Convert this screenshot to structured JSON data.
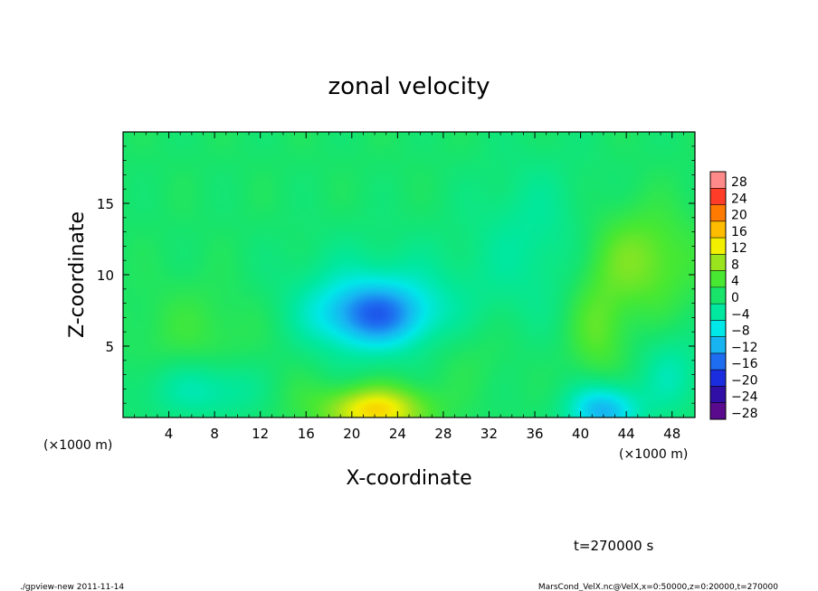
{
  "chart_data": {
    "type": "heatmap",
    "title": "zonal velocity",
    "xlabel": "X-coordinate",
    "ylabel": "Z-coordinate",
    "x_unit_note": "(×1000 m)",
    "x_unit_note_right": "(×1000 m)",
    "xlim": [
      0,
      50
    ],
    "ylim": [
      0,
      20
    ],
    "x_ticks": [
      4,
      8,
      12,
      16,
      20,
      24,
      28,
      32,
      36,
      40,
      44,
      48
    ],
    "x_tick_labels": [
      "4",
      "8",
      "12",
      "16",
      "20",
      "24",
      "28",
      "32",
      "36",
      "40",
      "44",
      "48"
    ],
    "y_ticks": [
      5,
      10,
      15
    ],
    "y_tick_labels": [
      "5",
      "10",
      "15"
    ],
    "colorbar": {
      "levels": [
        28,
        24,
        20,
        16,
        12,
        8,
        4,
        0,
        -4,
        -8,
        -12,
        -16,
        -20,
        -24,
        -28
      ],
      "labels": [
        "28",
        "24",
        "20",
        "16",
        "12",
        "8",
        "4",
        "0",
        "−4",
        "−8",
        "−12",
        "−16",
        "−20",
        "−24",
        "−28"
      ],
      "range": [
        -30,
        30
      ]
    },
    "features": [
      {
        "x": 22,
        "z": 0.5,
        "sx": 3.2,
        "sz": 1.2,
        "value": 15
      },
      {
        "x": 22,
        "z": 7.2,
        "sx": 3.5,
        "sz": 1.6,
        "value": -13
      },
      {
        "x": 22,
        "z": 8.0,
        "sx": 6.0,
        "sz": 3.0,
        "value": -5
      },
      {
        "x": 42,
        "z": 0.5,
        "sx": 2.2,
        "sz": 1.3,
        "value": -13
      },
      {
        "x": 8,
        "z": 2.0,
        "sx": 4.5,
        "sz": 1.5,
        "value": -6
      },
      {
        "x": 45,
        "z": 11,
        "sx": 3.5,
        "sz": 2.6,
        "value": 7
      },
      {
        "x": 41.5,
        "z": 6,
        "sx": 1.8,
        "sz": 2.5,
        "value": 5
      },
      {
        "x": 36,
        "z": 12.5,
        "sx": 4.0,
        "sz": 4.0,
        "value": -4
      },
      {
        "x": 7,
        "z": 6,
        "sx": 4.5,
        "sz": 2.5,
        "value": 3
      },
      {
        "x": 14,
        "z": 2.0,
        "sx": 2.5,
        "sz": 1.5,
        "value": 3
      },
      {
        "x": 30,
        "z": 4.5,
        "sx": 3.0,
        "sz": 2.0,
        "value": 2
      },
      {
        "x": 48,
        "z": 3.0,
        "sx": 2.0,
        "sz": 2.0,
        "value": -5
      }
    ]
  },
  "time_label": "t=270000 s",
  "footer_left": "./gpview-new   2011-11-14",
  "footer_right": "MarsCond_VelX.nc@VelX,x=0:50000,z=0:20000,t=270000",
  "colors": {
    "scale": [
      "#5a0a8c",
      "#2f0fa6",
      "#1a2ee0",
      "#1e6cf0",
      "#18b4f2",
      "#00e8e8",
      "#00e8a0",
      "#18e46a",
      "#48e832",
      "#9ae41e",
      "#f2f000",
      "#ffbc00",
      "#ff7a00",
      "#ff3c28",
      "#ff8a8a"
    ]
  }
}
